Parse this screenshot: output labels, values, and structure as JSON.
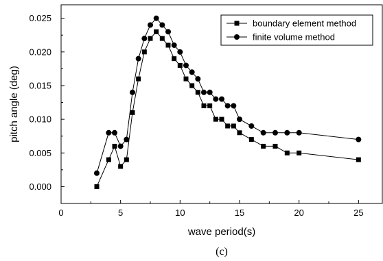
{
  "chart_data": {
    "type": "line",
    "xlabel": "wave period(s)",
    "ylabel": "pitch angle (deg)",
    "caption": "(c)",
    "xlim": [
      0,
      27
    ],
    "ylim": [
      -0.0025,
      0.027
    ],
    "xticks": [
      "0",
      "5",
      "10",
      "15",
      "20",
      "25"
    ],
    "yticks": [
      "0.000",
      "0.005",
      "0.010",
      "0.015",
      "0.020",
      "0.025"
    ],
    "grid": false,
    "legend_position": "top-right",
    "series": [
      {
        "name": "boundary element method",
        "marker": "square",
        "x": [
          3,
          4,
          4.5,
          5,
          5.5,
          6,
          6.5,
          7,
          7.5,
          8,
          8.5,
          9,
          9.5,
          10,
          10.5,
          11,
          11.5,
          12,
          12.5,
          13,
          13.5,
          14,
          14.5,
          15,
          16,
          17,
          18,
          19,
          20,
          25
        ],
        "y": [
          0.0,
          0.004,
          0.006,
          0.003,
          0.004,
          0.011,
          0.016,
          0.02,
          0.022,
          0.023,
          0.022,
          0.021,
          0.019,
          0.018,
          0.016,
          0.015,
          0.014,
          0.012,
          0.012,
          0.01,
          0.01,
          0.009,
          0.009,
          0.008,
          0.007,
          0.006,
          0.006,
          0.005,
          0.005,
          0.004
        ]
      },
      {
        "name": "finite volume method",
        "marker": "circle",
        "x": [
          3,
          4,
          4.5,
          5,
          5.5,
          6,
          6.5,
          7,
          7.5,
          8,
          8.5,
          9,
          9.5,
          10,
          10.5,
          11,
          11.5,
          12,
          12.5,
          13,
          13.5,
          14,
          14.5,
          15,
          16,
          17,
          18,
          19,
          20,
          25
        ],
        "y": [
          0.002,
          0.008,
          0.008,
          0.006,
          0.007,
          0.014,
          0.019,
          0.022,
          0.024,
          0.025,
          0.024,
          0.023,
          0.021,
          0.02,
          0.018,
          0.017,
          0.016,
          0.014,
          0.014,
          0.013,
          0.013,
          0.012,
          0.012,
          0.01,
          0.009,
          0.008,
          0.008,
          0.008,
          0.008,
          0.007
        ]
      }
    ]
  }
}
